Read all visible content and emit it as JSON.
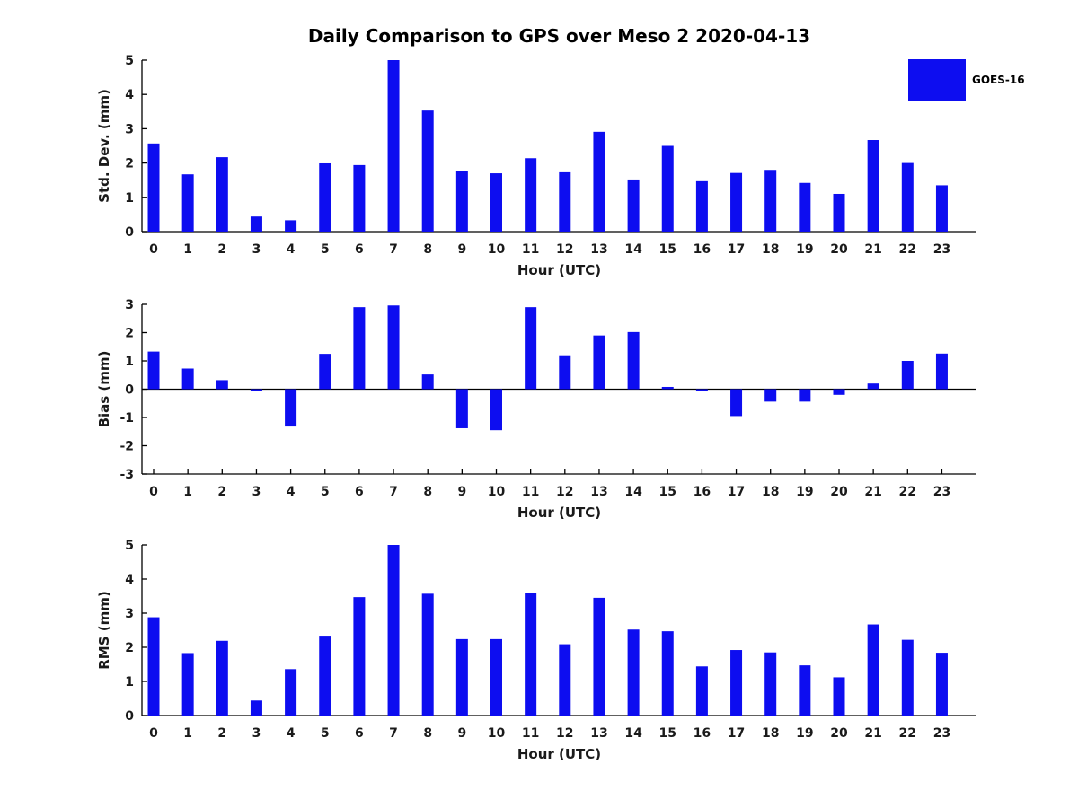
{
  "title": "Daily Comparison to GPS over Meso 2 2020-04-13",
  "legend": {
    "label": "GOES-16"
  },
  "colors": {
    "bar": "#0d0df0",
    "axis": "#000000",
    "text": "#1a1a1a"
  },
  "chart_data": [
    {
      "type": "bar",
      "panel": "stddev",
      "title": "",
      "xlabel": "Hour (UTC)",
      "ylabel": "Std. Dev. (mm)",
      "categories": [
        0,
        1,
        2,
        3,
        4,
        5,
        6,
        7,
        8,
        9,
        10,
        11,
        12,
        13,
        14,
        15,
        16,
        17,
        18,
        19,
        20,
        21,
        22,
        23
      ],
      "values": [
        2.57,
        1.67,
        2.17,
        0.44,
        0.33,
        1.99,
        1.94,
        5.0,
        3.53,
        1.76,
        1.7,
        2.14,
        1.73,
        2.91,
        1.52,
        2.5,
        1.47,
        1.71,
        1.8,
        1.42,
        1.1,
        2.67,
        2.0,
        1.35
      ],
      "ylim": [
        0,
        5
      ],
      "yticks": [
        0,
        1,
        2,
        3,
        4,
        5
      ],
      "grid": false,
      "legend_position": "upper-right-outside"
    },
    {
      "type": "bar",
      "panel": "bias",
      "title": "",
      "xlabel": "Hour (UTC)",
      "ylabel": "Bias (mm)",
      "categories": [
        0,
        1,
        2,
        3,
        4,
        5,
        6,
        7,
        8,
        9,
        10,
        11,
        12,
        13,
        14,
        15,
        16,
        17,
        18,
        19,
        20,
        21,
        22,
        23
      ],
      "values": [
        1.33,
        0.73,
        0.32,
        -0.05,
        -1.32,
        1.25,
        2.9,
        2.96,
        0.52,
        -1.38,
        -1.45,
        2.9,
        1.2,
        1.9,
        2.02,
        0.08,
        -0.06,
        -0.95,
        -0.44,
        -0.44,
        -0.2,
        0.2,
        1.0,
        1.26
      ],
      "ylim": [
        -3,
        3
      ],
      "yticks": [
        -3,
        -2,
        -1,
        0,
        1,
        2,
        3
      ],
      "grid": false,
      "legend_position": "none"
    },
    {
      "type": "bar",
      "panel": "rms",
      "title": "",
      "xlabel": "Hour (UTC)",
      "ylabel": "RMS (mm)",
      "categories": [
        0,
        1,
        2,
        3,
        4,
        5,
        6,
        7,
        8,
        9,
        10,
        11,
        12,
        13,
        14,
        15,
        16,
        17,
        18,
        19,
        20,
        21,
        22,
        23
      ],
      "values": [
        2.88,
        1.83,
        2.19,
        0.44,
        1.36,
        2.34,
        3.47,
        5.0,
        3.57,
        2.24,
        2.24,
        3.6,
        2.09,
        3.45,
        2.52,
        2.47,
        1.44,
        1.92,
        1.85,
        1.47,
        1.12,
        2.67,
        2.22,
        1.84
      ],
      "ylim": [
        0,
        5
      ],
      "yticks": [
        0,
        1,
        2,
        3,
        4,
        5
      ],
      "grid": false,
      "legend_position": "none"
    }
  ]
}
